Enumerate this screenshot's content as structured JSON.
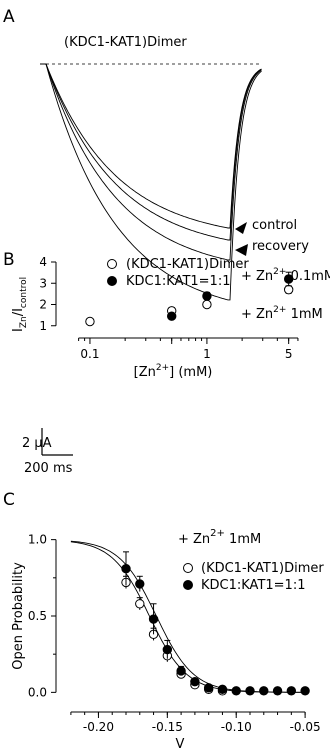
{
  "panels": [
    {
      "letter": "A",
      "title": "(KDC1-KAT1)Dimer",
      "scale_current": "2 μA",
      "scale_time": "200 ms",
      "traces": [
        {
          "label": "control",
          "amplitude": 0.82
        },
        {
          "label": "recovery",
          "amplitude": 0.88
        },
        {
          "label_prefix": "+ Zn",
          "sup": "2+",
          "label_suffix": " 0.1mM",
          "amplitude": 0.98
        },
        {
          "label_prefix": "+ Zn",
          "sup": "2+",
          "label_suffix": " 1mM",
          "amplitude": 1.18
        }
      ]
    },
    {
      "letter": "B",
      "chart_data": {
        "type": "scatter",
        "x_scale": "log",
        "xlim": [
          0.06,
          6.5
        ],
        "ylim": [
          0.8,
          4.0
        ],
        "x_ticks": [
          {
            "value": 0.1,
            "label": "0.1"
          },
          {
            "value": 0.5,
            "label": ""
          },
          {
            "value": 1,
            "label": "1"
          },
          {
            "value": 5,
            "label": "5"
          }
        ],
        "y_ticks": [
          1,
          2,
          3,
          4
        ],
        "xlabel_prefix": "[Zn",
        "xlabel_sup": "2+",
        "xlabel_suffix": "] (mM)",
        "ylabel_main": "I",
        "ylabel_sub1": "Zn",
        "ylabel_slash": "/I",
        "ylabel_sub2": "control",
        "legend_position": "top-left",
        "series": [
          {
            "name": "(KDC1-KAT1)Dimer",
            "marker": "open-circle",
            "points": [
              {
                "x": 0.1,
                "y": 1.2,
                "err": 0.06
              },
              {
                "x": 0.5,
                "y": 1.7,
                "err": 0.16
              },
              {
                "x": 1,
                "y": 2.0,
                "err": 0.12
              },
              {
                "x": 5,
                "y": 2.7,
                "err": 0.17
              }
            ]
          },
          {
            "name": "KDC1:KAT1=1:1",
            "marker": "filled-circle",
            "points": [
              {
                "x": 0.5,
                "y": 1.45,
                "err": 0
              },
              {
                "x": 1,
                "y": 2.4,
                "err": 0.17
              },
              {
                "x": 5,
                "y": 3.2,
                "err": 0.32
              }
            ]
          }
        ]
      }
    },
    {
      "letter": "C",
      "annotation_prefix": "+ Zn",
      "annotation_sup": "2+",
      "annotation_suffix": " 1mM",
      "chart_data": {
        "type": "scatter",
        "xlim": [
          -0.225,
          -0.045
        ],
        "ylim": [
          -0.05,
          1.05
        ],
        "x_ticks": [
          -0.2,
          -0.15,
          -0.1,
          -0.05
        ],
        "x_tick_labels": [
          "-0.20",
          "-0.15",
          "-0.10",
          "-0.05"
        ],
        "y_ticks": [
          0,
          0.5,
          1
        ],
        "y_tick_labels": [
          "0.0",
          "0.5",
          "1.0"
        ],
        "xlabel": "V",
        "ylabel": "Open Probability",
        "legend_position": "right",
        "fits": [
          {
            "v_half": -0.163,
            "slope": 0.0135
          },
          {
            "v_half": -0.158,
            "slope": 0.0135
          }
        ],
        "series": [
          {
            "name": "(KDC1-KAT1)Dimer",
            "marker": "open-circle",
            "points": [
              {
                "x": -0.18,
                "y": 0.72,
                "err": 0.04
              },
              {
                "x": -0.17,
                "y": 0.58,
                "err": 0.04
              },
              {
                "x": -0.16,
                "y": 0.38,
                "err": 0.04
              },
              {
                "x": -0.15,
                "y": 0.24,
                "err": 0.04
              },
              {
                "x": -0.14,
                "y": 0.12,
                "err": 0.02
              },
              {
                "x": -0.13,
                "y": 0.05,
                "err": 0
              },
              {
                "x": -0.12,
                "y": 0.02,
                "err": 0
              },
              {
                "x": -0.11,
                "y": 0.01,
                "err": 0
              }
            ]
          },
          {
            "name": "KDC1:KAT1=1:1",
            "marker": "filled-circle",
            "points": [
              {
                "x": -0.18,
                "y": 0.81,
                "err": 0.11
              },
              {
                "x": -0.17,
                "y": 0.71,
                "err": 0.05
              },
              {
                "x": -0.16,
                "y": 0.48,
                "err": 0.1
              },
              {
                "x": -0.15,
                "y": 0.28,
                "err": 0.06
              },
              {
                "x": -0.14,
                "y": 0.14,
                "err": 0.03
              },
              {
                "x": -0.13,
                "y": 0.07,
                "err": 0
              },
              {
                "x": -0.12,
                "y": 0.03,
                "err": 0
              },
              {
                "x": -0.11,
                "y": 0.02,
                "err": 0
              },
              {
                "x": -0.1,
                "y": 0.01,
                "err": 0
              },
              {
                "x": -0.09,
                "y": 0.01,
                "err": 0
              },
              {
                "x": -0.08,
                "y": 0.01,
                "err": 0
              },
              {
                "x": -0.07,
                "y": 0.01,
                "err": 0
              },
              {
                "x": -0.06,
                "y": 0.01,
                "err": 0
              },
              {
                "x": -0.05,
                "y": 0.01,
                "err": 0
              }
            ]
          }
        ]
      }
    }
  ]
}
